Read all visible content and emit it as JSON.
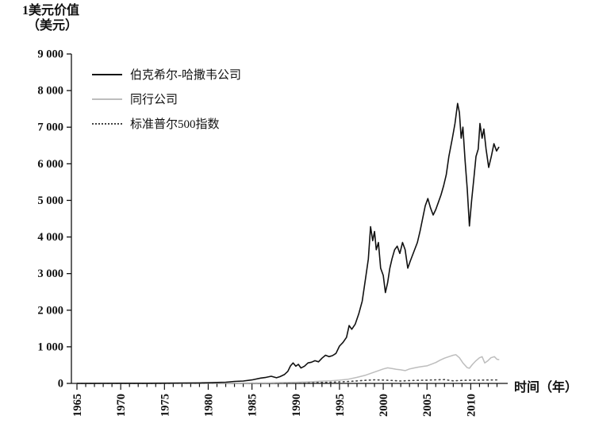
{
  "chart_data": {
    "type": "line",
    "y_axis_title_line1": "1美元价值",
    "y_axis_title_line2": "（美元）",
    "x_axis_title": "时间（年）",
    "xlim": [
      1965,
      2013.5
    ],
    "ylim": [
      0,
      9000
    ],
    "x_ticks": [
      1965,
      1970,
      1975,
      1980,
      1985,
      1990,
      1995,
      2000,
      2005,
      2010
    ],
    "y_ticks": [
      0,
      1000,
      2000,
      3000,
      4000,
      5000,
      6000,
      7000,
      8000,
      9000
    ],
    "y_tick_labels": [
      "0",
      "1 000",
      "2 000",
      "3 000",
      "4 000",
      "5 000",
      "6 000",
      "7 000",
      "8 000",
      "9 000"
    ],
    "grid": false,
    "legend_position": "top-left-inside",
    "legend": [
      {
        "label": "伯克希尔-哈撒韦公司",
        "style": "solid",
        "color": "#111111"
      },
      {
        "label": "同行公司",
        "style": "solid",
        "color": "#bdbdbd"
      },
      {
        "label": "标准普尔500指数",
        "style": "dotted",
        "color": "#444444"
      }
    ],
    "series": [
      {
        "id": "berkshire",
        "name": "伯克希尔-哈撒韦公司",
        "color": "#111111",
        "width": 1.6,
        "dash": null,
        "points": [
          [
            1965,
            0
          ],
          [
            1967,
            2
          ],
          [
            1970,
            4
          ],
          [
            1973,
            5
          ],
          [
            1975,
            6
          ],
          [
            1977,
            10
          ],
          [
            1979,
            14
          ],
          [
            1980,
            18
          ],
          [
            1981,
            25
          ],
          [
            1982,
            32
          ],
          [
            1983,
            55
          ],
          [
            1984,
            65
          ],
          [
            1985,
            95
          ],
          [
            1986,
            145
          ],
          [
            1986.6,
            165
          ],
          [
            1987.2,
            195
          ],
          [
            1987.8,
            155
          ],
          [
            1988.2,
            185
          ],
          [
            1988.7,
            240
          ],
          [
            1989.1,
            330
          ],
          [
            1989.4,
            480
          ],
          [
            1989.7,
            560
          ],
          [
            1990,
            470
          ],
          [
            1990.3,
            520
          ],
          [
            1990.6,
            420
          ],
          [
            1991,
            470
          ],
          [
            1991.4,
            560
          ],
          [
            1991.8,
            580
          ],
          [
            1992.2,
            620
          ],
          [
            1992.6,
            590
          ],
          [
            1993,
            690
          ],
          [
            1993.4,
            770
          ],
          [
            1993.8,
            730
          ],
          [
            1994.2,
            760
          ],
          [
            1994.6,
            820
          ],
          [
            1995,
            1020
          ],
          [
            1995.4,
            1120
          ],
          [
            1995.8,
            1260
          ],
          [
            1996.1,
            1580
          ],
          [
            1996.4,
            1480
          ],
          [
            1996.8,
            1620
          ],
          [
            1997.2,
            1900
          ],
          [
            1997.6,
            2250
          ],
          [
            1998,
            2900
          ],
          [
            1998.3,
            3400
          ],
          [
            1998.55,
            4280
          ],
          [
            1998.8,
            3900
          ],
          [
            1999,
            4150
          ],
          [
            1999.2,
            3650
          ],
          [
            1999.45,
            3850
          ],
          [
            1999.7,
            3150
          ],
          [
            2000,
            2950
          ],
          [
            2000.25,
            2480
          ],
          [
            2000.5,
            2750
          ],
          [
            2000.75,
            3150
          ],
          [
            2001,
            3400
          ],
          [
            2001.3,
            3650
          ],
          [
            2001.6,
            3750
          ],
          [
            2001.9,
            3550
          ],
          [
            2002.2,
            3850
          ],
          [
            2002.5,
            3650
          ],
          [
            2002.8,
            3150
          ],
          [
            2003.1,
            3350
          ],
          [
            2003.5,
            3600
          ],
          [
            2003.9,
            3850
          ],
          [
            2004.2,
            4150
          ],
          [
            2004.5,
            4500
          ],
          [
            2004.8,
            4850
          ],
          [
            2005.1,
            5050
          ],
          [
            2005.4,
            4800
          ],
          [
            2005.7,
            4600
          ],
          [
            2006,
            4750
          ],
          [
            2006.3,
            4950
          ],
          [
            2006.6,
            5150
          ],
          [
            2006.9,
            5400
          ],
          [
            2007.2,
            5700
          ],
          [
            2007.5,
            6200
          ],
          [
            2007.9,
            6700
          ],
          [
            2008.2,
            7100
          ],
          [
            2008.5,
            7650
          ],
          [
            2008.7,
            7400
          ],
          [
            2008.9,
            6700
          ],
          [
            2009.1,
            7000
          ],
          [
            2009.35,
            6100
          ],
          [
            2009.6,
            5300
          ],
          [
            2009.85,
            4300
          ],
          [
            2010.1,
            5000
          ],
          [
            2010.35,
            5600
          ],
          [
            2010.6,
            6200
          ],
          [
            2010.85,
            6400
          ],
          [
            2011.05,
            7100
          ],
          [
            2011.3,
            6700
          ],
          [
            2011.5,
            6950
          ],
          [
            2011.75,
            6400
          ],
          [
            2012.05,
            5900
          ],
          [
            2012.35,
            6200
          ],
          [
            2012.65,
            6550
          ],
          [
            2012.95,
            6350
          ],
          [
            2013.2,
            6450
          ]
        ]
      },
      {
        "id": "peers",
        "name": "同行公司",
        "color": "#bdbdbd",
        "width": 1.5,
        "dash": null,
        "points": [
          [
            1965,
            0
          ],
          [
            1970,
            1
          ],
          [
            1975,
            3
          ],
          [
            1980,
            6
          ],
          [
            1984,
            10
          ],
          [
            1987,
            18
          ],
          [
            1989,
            25
          ],
          [
            1990,
            30
          ],
          [
            1991,
            38
          ],
          [
            1992,
            48
          ],
          [
            1993,
            62
          ],
          [
            1994,
            72
          ],
          [
            1995,
            88
          ],
          [
            1996,
            115
          ],
          [
            1997,
            165
          ],
          [
            1998,
            225
          ],
          [
            1999,
            310
          ],
          [
            2000,
            395
          ],
          [
            2000.5,
            425
          ],
          [
            2001,
            405
          ],
          [
            2001.5,
            385
          ],
          [
            2002,
            370
          ],
          [
            2002.5,
            350
          ],
          [
            2003,
            395
          ],
          [
            2003.5,
            420
          ],
          [
            2004,
            445
          ],
          [
            2004.5,
            465
          ],
          [
            2005,
            480
          ],
          [
            2005.5,
            525
          ],
          [
            2006,
            570
          ],
          [
            2006.5,
            635
          ],
          [
            2007,
            690
          ],
          [
            2007.5,
            730
          ],
          [
            2008,
            770
          ],
          [
            2008.3,
            785
          ],
          [
            2008.7,
            700
          ],
          [
            2009.1,
            560
          ],
          [
            2009.6,
            430
          ],
          [
            2009.85,
            415
          ],
          [
            2010.2,
            520
          ],
          [
            2010.6,
            620
          ],
          [
            2011,
            700
          ],
          [
            2011.3,
            730
          ],
          [
            2011.6,
            560
          ],
          [
            2011.9,
            610
          ],
          [
            2012.3,
            700
          ],
          [
            2012.7,
            730
          ],
          [
            2013,
            660
          ],
          [
            2013.2,
            650
          ]
        ]
      },
      {
        "id": "sp500",
        "name": "标准普尔500指数",
        "color": "#444444",
        "width": 1.6,
        "dash": "1.5 4",
        "points": [
          [
            1965,
            1
          ],
          [
            1970,
            1
          ],
          [
            1975,
            2
          ],
          [
            1980,
            4
          ],
          [
            1985,
            9
          ],
          [
            1988,
            14
          ],
          [
            1990,
            18
          ],
          [
            1992,
            24
          ],
          [
            1994,
            30
          ],
          [
            1995,
            42
          ],
          [
            1996,
            52
          ],
          [
            1997,
            68
          ],
          [
            1998,
            85
          ],
          [
            1999,
            98
          ],
          [
            2000,
            92
          ],
          [
            2001,
            80
          ],
          [
            2002,
            64
          ],
          [
            2003,
            78
          ],
          [
            2004,
            84
          ],
          [
            2005,
            88
          ],
          [
            2006,
            98
          ],
          [
            2007,
            104
          ],
          [
            2008,
            70
          ],
          [
            2009,
            82
          ],
          [
            2010,
            90
          ],
          [
            2011,
            88
          ],
          [
            2012,
            94
          ],
          [
            2013.2,
            96
          ]
        ]
      }
    ]
  }
}
